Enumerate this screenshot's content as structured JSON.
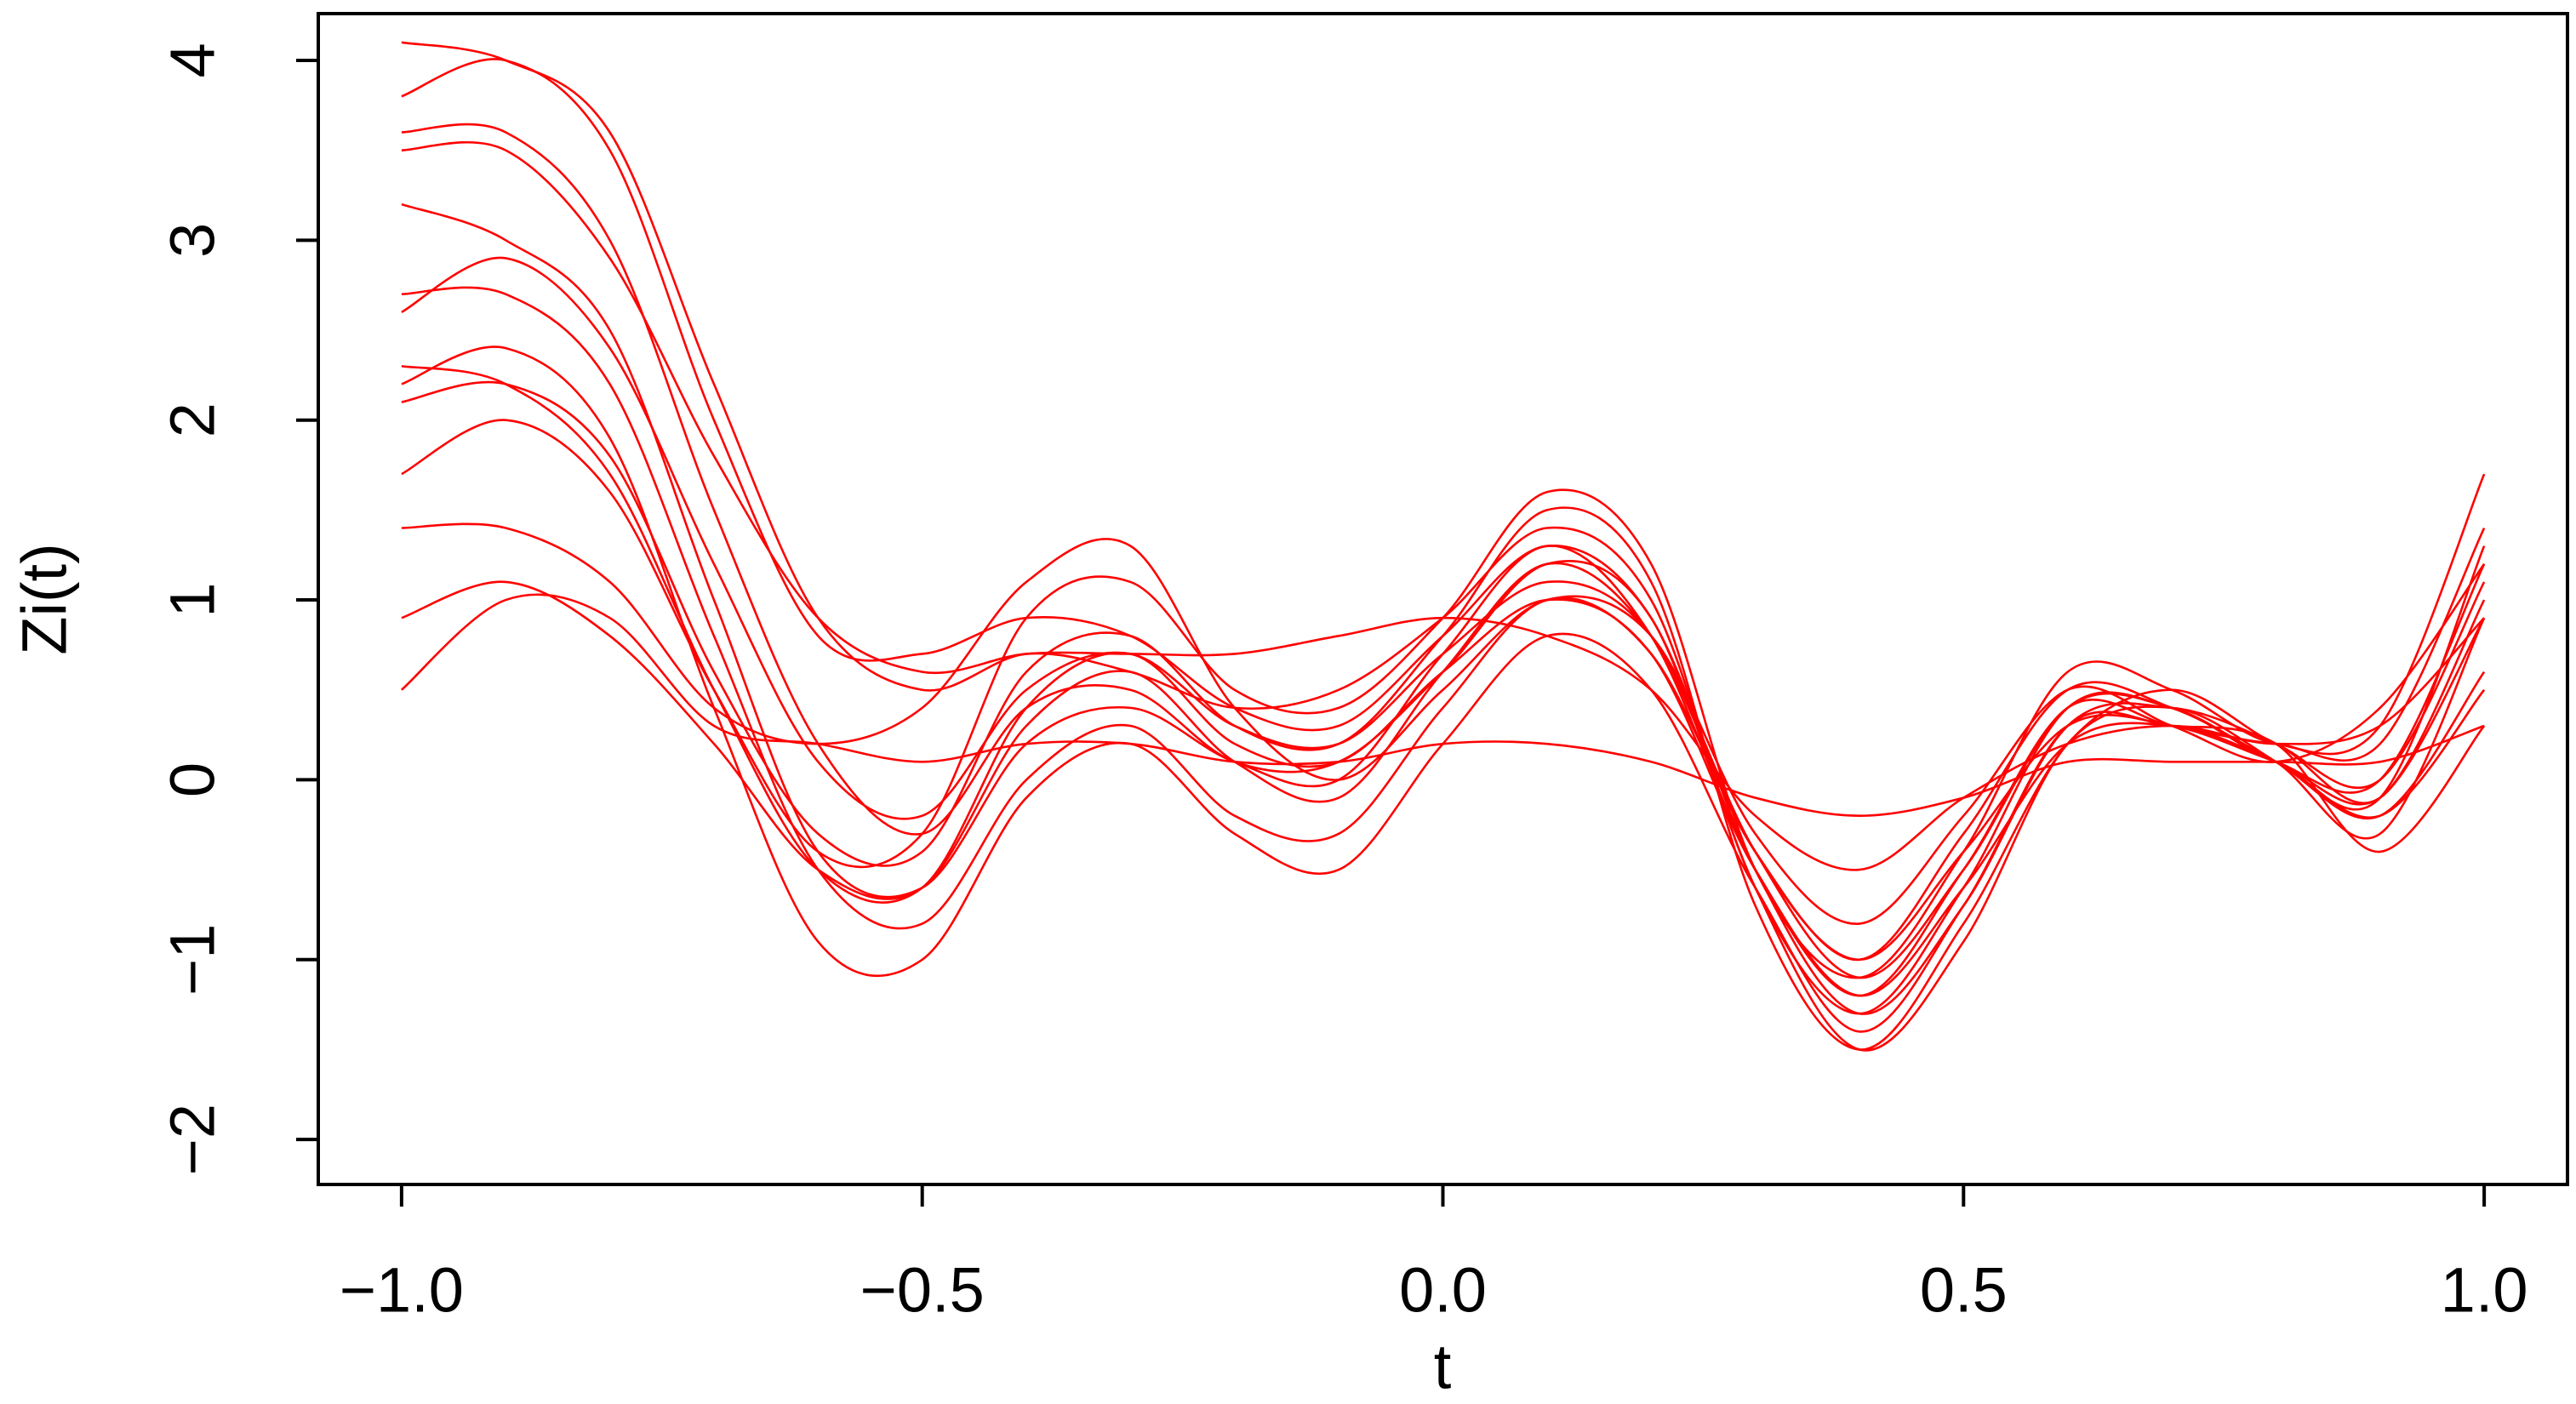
{
  "chart_data": {
    "type": "line",
    "xlabel": "t",
    "ylabel": "Zi(t)",
    "color": "#ff0000",
    "x": [
      -1.0,
      -0.9,
      -0.8,
      -0.7,
      -0.6,
      -0.5,
      -0.4,
      -0.3,
      -0.2,
      -0.1,
      0.0,
      0.1,
      0.2,
      0.3,
      0.4,
      0.5,
      0.6,
      0.7,
      0.8,
      0.9,
      1.0
    ],
    "series": [
      {
        "values": [
          4.1,
          4.0,
          3.6,
          2.2,
          0.9,
          0.5,
          0.7,
          0.6,
          0.4,
          0.5,
          0.9,
          1.4,
          1.0,
          -0.6,
          -1.3,
          -0.6,
          0.4,
          0.4,
          0.1,
          -0.1,
          1.3
        ]
      },
      {
        "values": [
          3.6,
          3.6,
          3.0,
          1.5,
          0.2,
          -0.3,
          0.4,
          0.5,
          0.1,
          0.1,
          0.6,
          1.2,
          0.9,
          -0.6,
          -1.5,
          -0.9,
          0.2,
          0.4,
          0.1,
          -0.3,
          0.9
        ]
      },
      {
        "values": [
          3.2,
          3.0,
          2.5,
          1.0,
          -0.4,
          -0.6,
          0.2,
          0.4,
          0.1,
          0.0,
          0.7,
          1.3,
          0.8,
          -0.5,
          -1.2,
          -0.5,
          0.4,
          0.3,
          0.2,
          0.2,
          1.4
        ]
      },
      {
        "values": [
          2.7,
          2.7,
          2.2,
          0.8,
          -0.5,
          -0.8,
          0.0,
          0.3,
          -0.2,
          -0.3,
          0.4,
          1.0,
          0.7,
          -0.4,
          -1.0,
          -0.3,
          0.5,
          0.4,
          0.1,
          -0.2,
          0.6
        ]
      },
      {
        "values": [
          2.2,
          2.4,
          1.9,
          0.4,
          -0.9,
          -1.0,
          -0.1,
          0.2,
          -0.3,
          -0.5,
          0.2,
          0.8,
          0.5,
          -0.6,
          -1.4,
          -0.7,
          0.3,
          0.3,
          0.2,
          -0.4,
          0.3
        ]
      },
      {
        "values": [
          2.1,
          2.2,
          1.8,
          0.6,
          -0.3,
          -0.4,
          0.6,
          0.8,
          0.3,
          0.2,
          0.8,
          1.5,
          1.1,
          -0.7,
          -1.5,
          -0.8,
          0.2,
          0.5,
          0.2,
          0.0,
          1.1
        ]
      },
      {
        "values": [
          1.7,
          2.0,
          1.6,
          0.5,
          -0.4,
          -0.3,
          0.9,
          1.1,
          0.5,
          0.4,
          0.9,
          1.6,
          1.2,
          -0.5,
          -1.1,
          -0.4,
          0.6,
          0.5,
          0.2,
          0.3,
          1.7
        ]
      },
      {
        "values": [
          1.4,
          1.4,
          1.1,
          0.4,
          0.2,
          0.4,
          1.1,
          1.3,
          0.4,
          0.0,
          0.5,
          1.0,
          0.8,
          -0.3,
          -0.8,
          -0.2,
          0.5,
          0.3,
          0.1,
          0.4,
          1.2
        ]
      },
      {
        "values": [
          0.9,
          1.1,
          0.8,
          0.2,
          -0.5,
          -0.6,
          0.3,
          0.6,
          0.1,
          -0.1,
          0.6,
          1.2,
          0.8,
          -0.4,
          -1.0,
          -0.4,
          0.3,
          0.3,
          0.1,
          -0.1,
          0.9
        ]
      },
      {
        "values": [
          0.5,
          1.0,
          0.9,
          0.3,
          0.2,
          0.1,
          0.2,
          0.2,
          0.1,
          0.1,
          0.2,
          0.2,
          0.1,
          -0.1,
          -0.2,
          -0.1,
          0.1,
          0.1,
          0.1,
          0.1,
          0.3
        ]
      },
      {
        "values": [
          3.5,
          3.5,
          2.9,
          1.8,
          0.9,
          0.6,
          0.7,
          0.7,
          0.7,
          0.8,
          0.9,
          0.8,
          0.5,
          -0.2,
          -0.5,
          -0.1,
          0.2,
          0.3,
          0.2,
          0.3,
          0.9
        ]
      },
      {
        "values": [
          2.3,
          2.2,
          1.7,
          0.5,
          -0.5,
          -0.6,
          0.4,
          0.7,
          0.2,
          0.1,
          0.6,
          1.0,
          0.7,
          -0.5,
          -1.2,
          -0.6,
          0.2,
          0.3,
          0.1,
          -0.2,
          0.5
        ]
      },
      {
        "values": [
          3.8,
          4.0,
          3.5,
          2.0,
          0.8,
          0.7,
          0.9,
          0.8,
          0.4,
          0.3,
          0.8,
          1.3,
          0.9,
          -0.5,
          -1.3,
          -0.7,
          0.3,
          0.4,
          0.2,
          -0.1,
          1.0
        ]
      },
      {
        "values": [
          2.6,
          2.9,
          2.4,
          1.2,
          0.1,
          -0.2,
          0.5,
          0.7,
          0.3,
          0.2,
          0.7,
          1.1,
          0.8,
          -0.4,
          -1.1,
          -0.5,
          0.4,
          0.4,
          0.1,
          0.0,
          1.2
        ]
      }
    ],
    "xlim": [
      -1.08,
      1.08
    ],
    "xticks": [
      {
        "value": -1,
        "label": "−1.0"
      },
      {
        "value": -0.5,
        "label": "−0.5"
      },
      {
        "value": 0,
        "label": "0.0"
      },
      0.5,
      {
        "value": 1,
        "label": "1.0"
      }
    ],
    "ylim": [
      -2.25,
      4.26
    ],
    "yticks": [
      {
        "value": -2,
        "label": "−2"
      },
      {
        "value": -1,
        "label": "−1"
      },
      0,
      1,
      2,
      3,
      4
    ]
  }
}
